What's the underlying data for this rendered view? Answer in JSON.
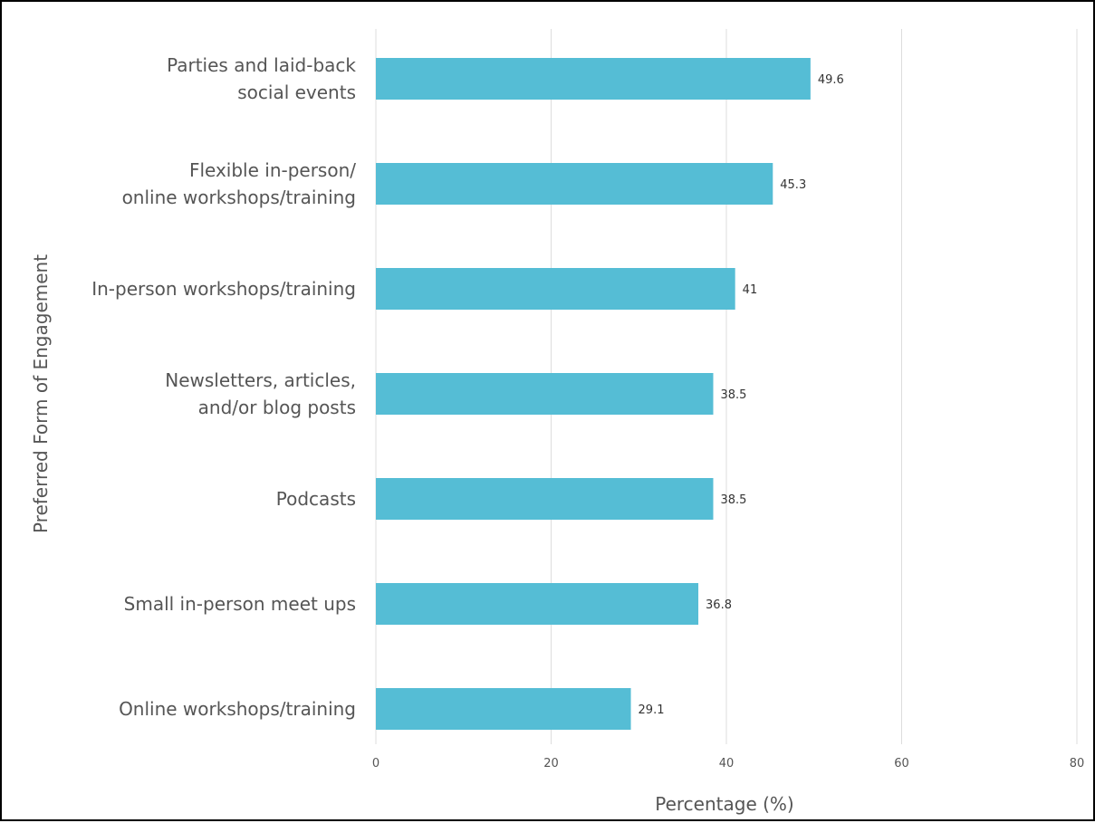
{
  "chart_data": {
    "type": "bar",
    "orientation": "horizontal",
    "categories": [
      "Parties and laid-back\nsocial events",
      "Flexible in-person/\nonline workshops/training",
      "In-person workshops/training",
      "Newsletters, articles,\nand/or blog posts",
      "Podcasts",
      "Small in-person meet ups",
      "Online workshops/training"
    ],
    "values": [
      49.6,
      45.3,
      41,
      38.5,
      38.5,
      36.8,
      29.1
    ],
    "data_labels": [
      "49.6",
      "45.3",
      "41",
      "38.5",
      "38.5",
      "36.8",
      "29.1"
    ],
    "xlabel": "Percentage (%)",
    "ylabel": "Preferred Form of Engagement",
    "xlim": [
      0,
      80
    ],
    "xticks": [
      0,
      20,
      40,
      60,
      80
    ],
    "grid": true,
    "bar_color": "#55bdd5",
    "grid_color": "#dddddd"
  }
}
